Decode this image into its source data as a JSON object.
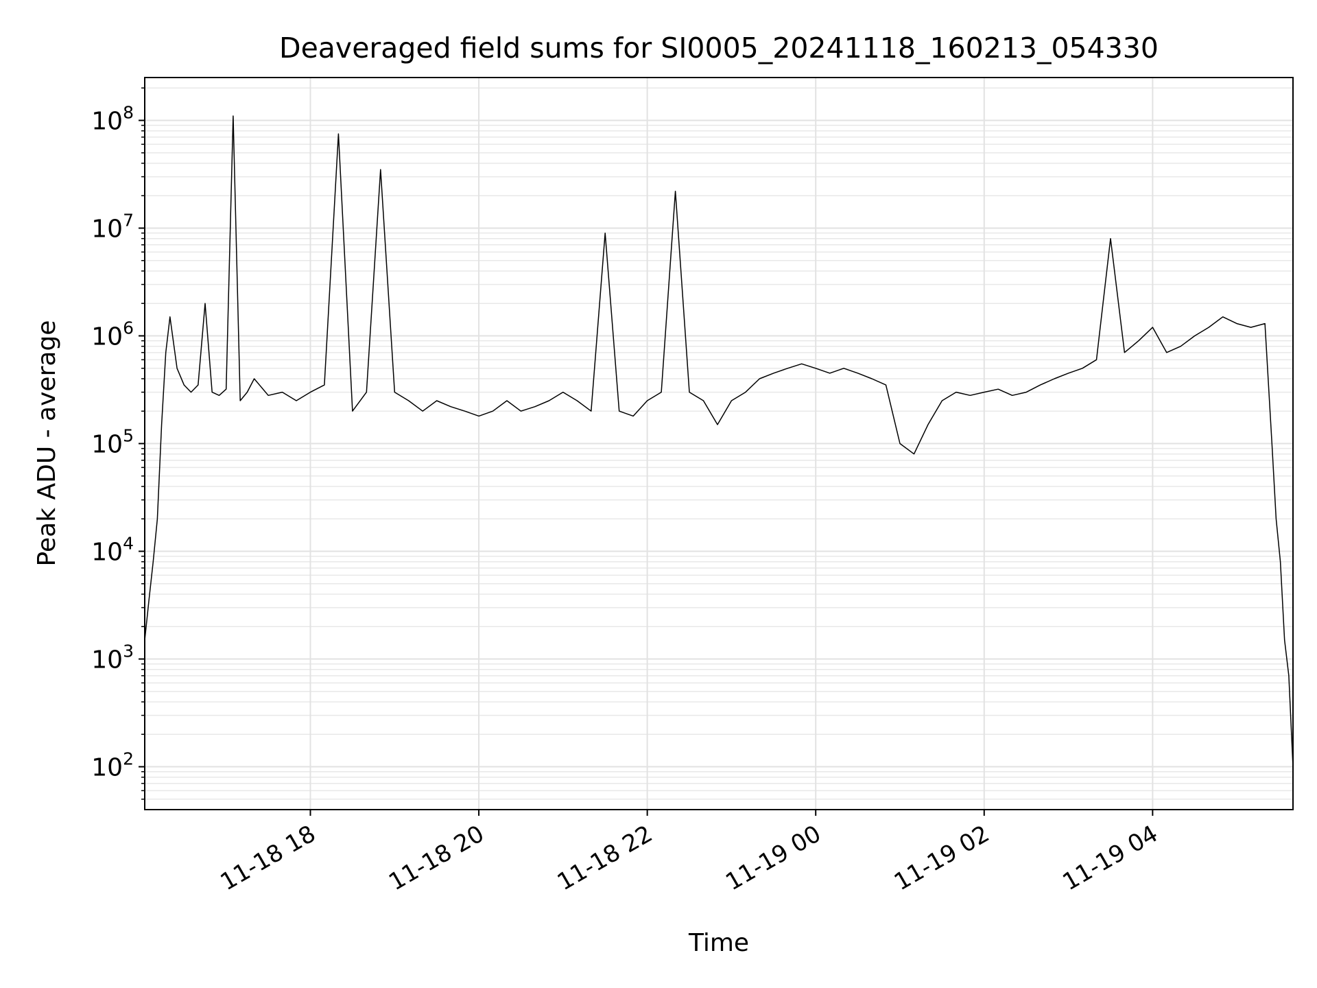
{
  "chart_data": {
    "type": "line",
    "title": "Deaveraged field sums for SI0005_20241118_160213_054330",
    "xlabel": "Time",
    "ylabel": "Peak ADU - average",
    "x_axis": {
      "kind": "datetime",
      "range": [
        "2024-11-18T16:02:00",
        "2024-11-19T05:40:00"
      ],
      "ticks": [
        {
          "value": "2024-11-18T18:00:00",
          "label": "11-18 18"
        },
        {
          "value": "2024-11-18T20:00:00",
          "label": "11-18 20"
        },
        {
          "value": "2024-11-18T22:00:00",
          "label": "11-18 22"
        },
        {
          "value": "2024-11-19T00:00:00",
          "label": "11-19 00"
        },
        {
          "value": "2024-11-19T02:00:00",
          "label": "11-19 02"
        },
        {
          "value": "2024-11-19T04:00:00",
          "label": "11-19 04"
        }
      ]
    },
    "y_axis": {
      "scale": "log",
      "range": [
        40,
        250000000
      ],
      "ticks": [
        {
          "value": 100,
          "base": "10",
          "exp": "2"
        },
        {
          "value": 1000,
          "base": "10",
          "exp": "3"
        },
        {
          "value": 10000,
          "base": "10",
          "exp": "4"
        },
        {
          "value": 100000,
          "base": "10",
          "exp": "5"
        },
        {
          "value": 1000000,
          "base": "10",
          "exp": "6"
        },
        {
          "value": 10000000,
          "base": "10",
          "exp": "7"
        },
        {
          "value": 100000000,
          "base": "10",
          "exp": "8"
        }
      ]
    },
    "grid": true,
    "line_color": "#000000",
    "series": [
      {
        "x": [
          "2024-11-18T16:02:00",
          "2024-11-18T16:05:00",
          "2024-11-18T16:08:00",
          "2024-11-18T16:11:00",
          "2024-11-18T16:14:00",
          "2024-11-18T16:17:00",
          "2024-11-18T16:20:00",
          "2024-11-18T16:25:00",
          "2024-11-18T16:30:00",
          "2024-11-18T16:35:00",
          "2024-11-18T16:40:00",
          "2024-11-18T16:45:00",
          "2024-11-18T16:50:00",
          "2024-11-18T16:55:00",
          "2024-11-18T17:00:00",
          "2024-11-18T17:05:00",
          "2024-11-18T17:10:00",
          "2024-11-18T17:15:00",
          "2024-11-18T17:20:00",
          "2024-11-18T17:30:00",
          "2024-11-18T17:40:00",
          "2024-11-18T17:50:00",
          "2024-11-18T18:00:00",
          "2024-11-18T18:10:00",
          "2024-11-18T18:20:00",
          "2024-11-18T18:30:00",
          "2024-11-18T18:40:00",
          "2024-11-18T18:50:00",
          "2024-11-18T19:00:00",
          "2024-11-18T19:10:00",
          "2024-11-18T19:20:00",
          "2024-11-18T19:30:00",
          "2024-11-18T19:40:00",
          "2024-11-18T19:50:00",
          "2024-11-18T20:00:00",
          "2024-11-18T20:10:00",
          "2024-11-18T20:20:00",
          "2024-11-18T20:30:00",
          "2024-11-18T20:40:00",
          "2024-11-18T20:50:00",
          "2024-11-18T21:00:00",
          "2024-11-18T21:10:00",
          "2024-11-18T21:20:00",
          "2024-11-18T21:30:00",
          "2024-11-18T21:40:00",
          "2024-11-18T21:50:00",
          "2024-11-18T22:00:00",
          "2024-11-18T22:10:00",
          "2024-11-18T22:20:00",
          "2024-11-18T22:30:00",
          "2024-11-18T22:40:00",
          "2024-11-18T22:50:00",
          "2024-11-18T23:00:00",
          "2024-11-18T23:10:00",
          "2024-11-18T23:20:00",
          "2024-11-18T23:30:00",
          "2024-11-18T23:40:00",
          "2024-11-18T23:50:00",
          "2024-11-19T00:00:00",
          "2024-11-19T00:10:00",
          "2024-11-19T00:20:00",
          "2024-11-19T00:30:00",
          "2024-11-19T00:40:00",
          "2024-11-19T00:50:00",
          "2024-11-19T01:00:00",
          "2024-11-19T01:10:00",
          "2024-11-19T01:20:00",
          "2024-11-19T01:30:00",
          "2024-11-19T01:40:00",
          "2024-11-19T01:50:00",
          "2024-11-19T02:00:00",
          "2024-11-19T02:10:00",
          "2024-11-19T02:20:00",
          "2024-11-19T02:30:00",
          "2024-11-19T02:40:00",
          "2024-11-19T02:50:00",
          "2024-11-19T03:00:00",
          "2024-11-19T03:10:00",
          "2024-11-19T03:20:00",
          "2024-11-19T03:30:00",
          "2024-11-19T03:40:00",
          "2024-11-19T03:50:00",
          "2024-11-19T04:00:00",
          "2024-11-19T04:10:00",
          "2024-11-19T04:20:00",
          "2024-11-19T04:30:00",
          "2024-11-19T04:40:00",
          "2024-11-19T04:50:00",
          "2024-11-19T05:00:00",
          "2024-11-19T05:10:00",
          "2024-11-19T05:20:00",
          "2024-11-19T05:25:00",
          "2024-11-19T05:28:00",
          "2024-11-19T05:31:00",
          "2024-11-19T05:34:00",
          "2024-11-19T05:37:00",
          "2024-11-19T05:40:00"
        ],
        "y": [
          1500,
          3500,
          8000,
          20000,
          150000,
          700000,
          1500000,
          500000,
          350000,
          300000,
          350000,
          2000000,
          300000,
          280000,
          320000,
          110000000,
          250000,
          300000,
          400000,
          280000,
          300000,
          250000,
          300000,
          350000,
          75000000,
          200000,
          300000,
          35000000,
          300000,
          250000,
          200000,
          250000,
          220000,
          200000,
          180000,
          200000,
          250000,
          200000,
          220000,
          250000,
          300000,
          250000,
          200000,
          9000000,
          200000,
          180000,
          250000,
          300000,
          22000000,
          300000,
          250000,
          150000,
          250000,
          300000,
          400000,
          450000,
          500000,
          550000,
          500000,
          450000,
          500000,
          450000,
          400000,
          350000,
          100000,
          80000,
          150000,
          250000,
          300000,
          280000,
          300000,
          320000,
          280000,
          300000,
          350000,
          400000,
          450000,
          500000,
          600000,
          8000000,
          700000,
          900000,
          1200000,
          700000,
          800000,
          1000000,
          1200000,
          1500000,
          1300000,
          1200000,
          1300000,
          100000,
          20000,
          8000,
          1500,
          700,
          100
        ]
      }
    ]
  }
}
